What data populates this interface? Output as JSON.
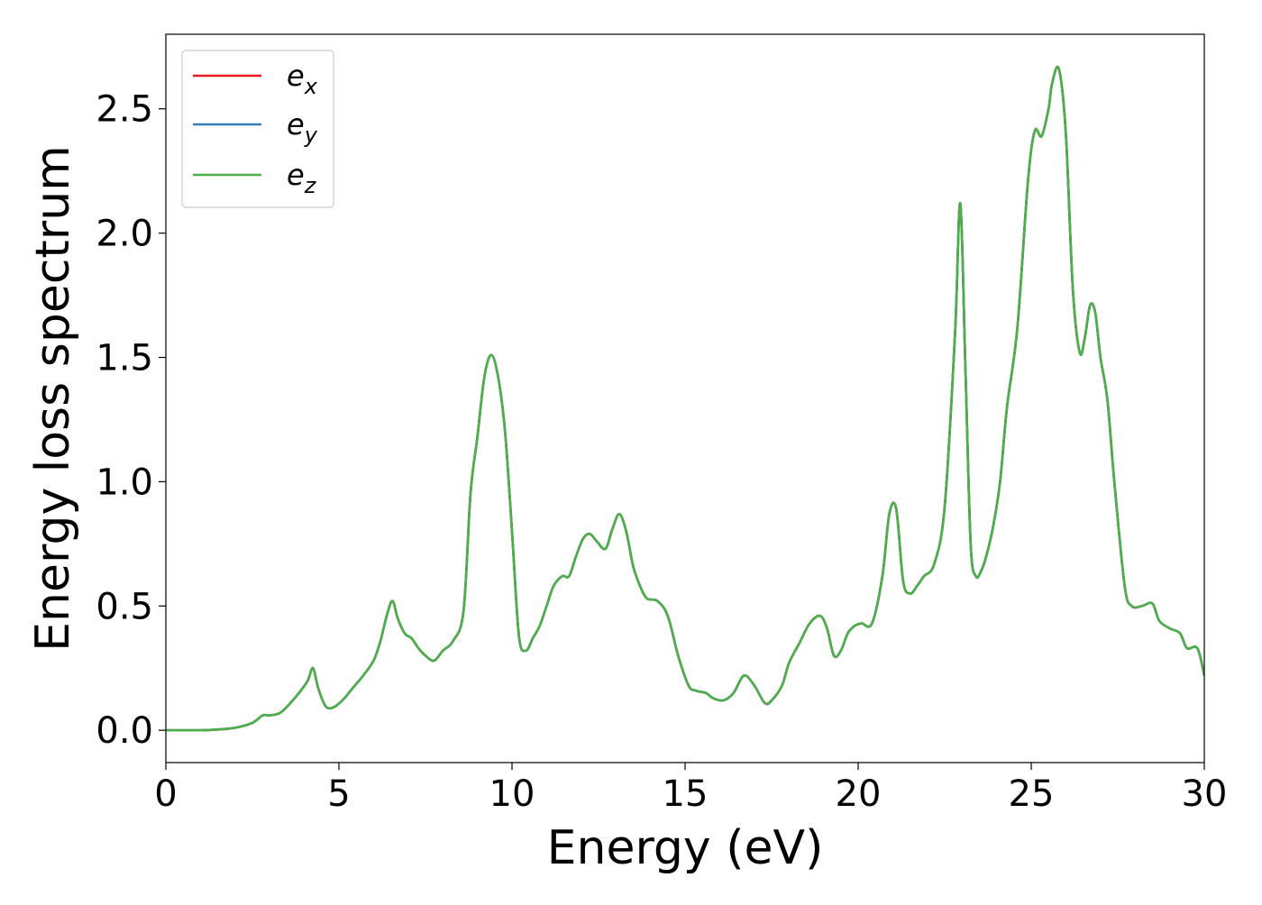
{
  "chart_data": {
    "type": "line",
    "title": "",
    "xlabel": "Energy (eV)",
    "ylabel": "Energy loss spectrum",
    "xlim": [
      0,
      30
    ],
    "ylim": [
      -0.13,
      2.8
    ],
    "xticks": [
      0,
      5,
      10,
      15,
      20,
      25,
      30
    ],
    "xtick_labels": [
      "0",
      "5",
      "10",
      "15",
      "20",
      "25",
      "30"
    ],
    "yticks": [
      0.0,
      0.5,
      1.0,
      1.5,
      2.0,
      2.5
    ],
    "ytick_labels": [
      "0.0",
      "0.5",
      "1.0",
      "1.5",
      "2.0",
      "2.5"
    ],
    "grid": false,
    "legend_position": "upper-left",
    "series": [
      {
        "name": "e",
        "subscript": "x",
        "color": "#e41a1c"
      },
      {
        "name": "e",
        "subscript": "y",
        "color": "#377eb8"
      },
      {
        "name": "e",
        "subscript": "z",
        "color": "#4daf4a"
      }
    ],
    "shared_curve_note": "",
    "x": [
      0,
      0.5,
      1.0,
      1.5,
      2.0,
      2.5,
      2.8,
      3.0,
      3.3,
      3.6,
      3.9,
      4.1,
      4.25,
      4.4,
      4.6,
      4.8,
      5.1,
      5.4,
      5.7,
      6.0,
      6.2,
      6.4,
      6.55,
      6.7,
      6.9,
      7.1,
      7.3,
      7.5,
      7.75,
      8.0,
      8.3,
      8.6,
      8.8,
      9.0,
      9.2,
      9.4,
      9.6,
      9.8,
      10.0,
      10.2,
      10.4,
      10.6,
      10.8,
      11.0,
      11.2,
      11.45,
      11.65,
      11.85,
      12.05,
      12.25,
      12.45,
      12.7,
      12.9,
      13.1,
      13.3,
      13.5,
      13.7,
      13.9,
      14.2,
      14.5,
      14.8,
      15.1,
      15.3,
      15.6,
      15.8,
      16.1,
      16.4,
      16.7,
      17.0,
      17.3,
      17.5,
      17.8,
      18.0,
      18.3,
      18.6,
      18.9,
      19.1,
      19.3,
      19.5,
      19.7,
      19.9,
      20.1,
      20.4,
      20.7,
      20.9,
      21.1,
      21.3,
      21.5,
      21.7,
      21.9,
      22.2,
      22.5,
      22.8,
      22.95,
      23.1,
      23.25,
      23.4,
      23.55,
      23.7,
      23.9,
      24.1,
      24.3,
      24.6,
      24.9,
      25.1,
      25.3,
      25.5,
      25.6,
      25.8,
      26.0,
      26.2,
      26.4,
      26.55,
      26.7,
      26.85,
      27.0,
      27.2,
      27.4,
      27.7,
      27.9,
      28.2,
      28.5,
      28.7,
      29.0,
      29.3,
      29.5,
      29.8,
      30.0
    ],
    "y": [
      0.0,
      0.0,
      0.0,
      0.003,
      0.01,
      0.03,
      0.06,
      0.06,
      0.07,
      0.11,
      0.16,
      0.2,
      0.25,
      0.17,
      0.1,
      0.09,
      0.12,
      0.17,
      0.22,
      0.28,
      0.36,
      0.47,
      0.52,
      0.45,
      0.39,
      0.37,
      0.33,
      0.3,
      0.28,
      0.32,
      0.36,
      0.48,
      0.95,
      1.18,
      1.42,
      1.51,
      1.42,
      1.2,
      0.8,
      0.38,
      0.32,
      0.37,
      0.42,
      0.5,
      0.58,
      0.62,
      0.62,
      0.7,
      0.77,
      0.79,
      0.76,
      0.73,
      0.81,
      0.87,
      0.8,
      0.66,
      0.58,
      0.53,
      0.52,
      0.46,
      0.3,
      0.18,
      0.16,
      0.15,
      0.13,
      0.12,
      0.15,
      0.22,
      0.18,
      0.11,
      0.12,
      0.18,
      0.27,
      0.35,
      0.43,
      0.46,
      0.41,
      0.3,
      0.32,
      0.39,
      0.42,
      0.43,
      0.43,
      0.62,
      0.87,
      0.89,
      0.6,
      0.55,
      0.58,
      0.62,
      0.67,
      0.9,
      1.6,
      2.12,
      1.45,
      0.75,
      0.62,
      0.64,
      0.7,
      0.82,
      1.0,
      1.3,
      1.62,
      2.2,
      2.41,
      2.39,
      2.5,
      2.6,
      2.66,
      2.4,
      1.78,
      1.52,
      1.58,
      1.71,
      1.68,
      1.5,
      1.33,
      1.0,
      0.58,
      0.5,
      0.5,
      0.51,
      0.44,
      0.41,
      0.39,
      0.33,
      0.33,
      0.22
    ]
  }
}
